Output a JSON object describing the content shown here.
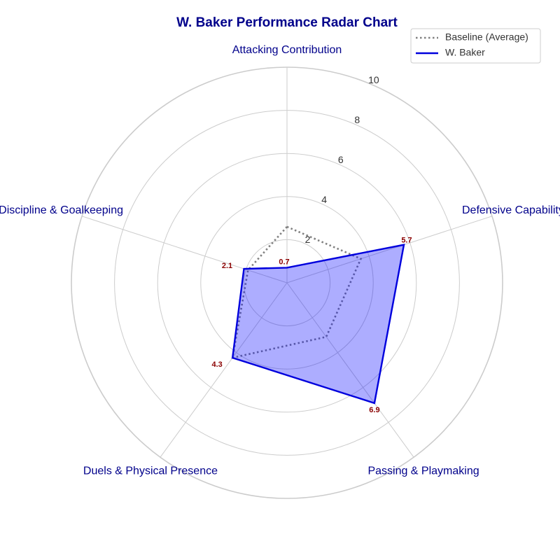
{
  "chart_data": {
    "type": "radar",
    "title": "W. Baker Performance Radar Chart",
    "categories": [
      "Attacking Contribution",
      "Defensive Capability",
      "Passing & Playmaking",
      "Duels & Physical Presence",
      "Discipline & Goalkeeping"
    ],
    "rlim": [
      0,
      10
    ],
    "rticks": [
      2,
      4,
      6,
      8,
      10
    ],
    "rtick_labels": [
      "2",
      "4",
      "6",
      "8",
      "10"
    ],
    "grid": true,
    "legend_position": "top-right",
    "series": [
      {
        "name": "Baseline (Average)",
        "values": [
          2.6,
          3.6,
          3.1,
          4.3,
          1.9
        ],
        "color": "#808080",
        "style": "dotted",
        "show_labels": false
      },
      {
        "name": "W. Baker",
        "values": [
          0.7,
          5.7,
          6.9,
          4.3,
          2.1
        ],
        "value_labels": [
          "0.7",
          "5.7",
          "6.9",
          "4.3",
          "2.1"
        ],
        "color": "#0000dd",
        "fill": "#0000ff",
        "style": "solid",
        "show_labels": true
      }
    ]
  }
}
